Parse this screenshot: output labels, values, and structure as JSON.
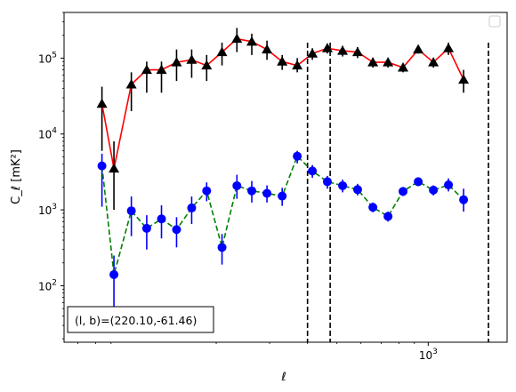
{
  "chart_data": {
    "type": "line",
    "xscale": "log",
    "yscale": "log",
    "xlabel": "ℓ",
    "ylabel": "C_ℓ [mK²]",
    "xlim": [
      63,
      1820
    ],
    "ylim": [
      18,
      400000
    ],
    "x_tick_labels": [
      {
        "value": 1000,
        "base": "10",
        "exp": "3"
      }
    ],
    "y_tick_labels": [
      {
        "value": 100,
        "base": "10",
        "exp": "2"
      },
      {
        "value": 1000,
        "base": "10",
        "exp": "3"
      },
      {
        "value": 10000,
        "base": "10",
        "exp": "4"
      },
      {
        "value": 100000,
        "base": "10",
        "exp": "5"
      }
    ],
    "annotation": "(l, b)=(220.10,-61.46)",
    "legend": {
      "placement": "upper right",
      "entries": []
    },
    "vlines": [
      {
        "x": 400,
        "color": "#000000",
        "dash": "dashed"
      },
      {
        "x": 475,
        "color": "#000000",
        "dash": "dashed"
      },
      {
        "x": 1580,
        "color": "#000000",
        "dash": "dashed"
      }
    ],
    "series": [
      {
        "line_color": "#ff0000",
        "marker_color": "#000000",
        "marker": "triangle",
        "line_style": "solid",
        "points": [
          {
            "x": 84,
            "y": 25000,
            "lo": 6000,
            "hi": 42000
          },
          {
            "x": 92,
            "y": 3500,
            "lo": 1000,
            "hi": 8000
          },
          {
            "x": 105,
            "y": 45000,
            "lo": 20000,
            "hi": 65000
          },
          {
            "x": 118,
            "y": 70000,
            "lo": 35000,
            "hi": 90000
          },
          {
            "x": 132,
            "y": 70000,
            "lo": 35000,
            "hi": 90000
          },
          {
            "x": 148,
            "y": 88000,
            "lo": 50000,
            "hi": 130000
          },
          {
            "x": 166,
            "y": 95000,
            "lo": 55000,
            "hi": 130000
          },
          {
            "x": 186,
            "y": 80000,
            "lo": 50000,
            "hi": 110000
          },
          {
            "x": 209,
            "y": 120000,
            "lo": 80000,
            "hi": 160000
          },
          {
            "x": 234,
            "y": 180000,
            "lo": 120000,
            "hi": 250000
          },
          {
            "x": 262,
            "y": 165000,
            "lo": 110000,
            "hi": 210000
          },
          {
            "x": 294,
            "y": 130000,
            "lo": 95000,
            "hi": 170000
          },
          {
            "x": 330,
            "y": 90000,
            "lo": 70000,
            "hi": 110000
          },
          {
            "x": 370,
            "y": 80000,
            "lo": 65000,
            "hi": 100000
          },
          {
            "x": 415,
            "y": 115000,
            "lo": 95000,
            "hi": 135000
          },
          {
            "x": 465,
            "y": 135000,
            "lo": 115000,
            "hi": 155000
          },
          {
            "x": 522,
            "y": 125000,
            "lo": 105000,
            "hi": 145000
          },
          {
            "x": 585,
            "y": 120000,
            "lo": 100000,
            "hi": 140000
          },
          {
            "x": 657,
            "y": 88000,
            "lo": 75000,
            "hi": 100000
          },
          {
            "x": 737,
            "y": 88000,
            "lo": 75000,
            "hi": 100000
          },
          {
            "x": 826,
            "y": 75000,
            "lo": 65000,
            "hi": 85000
          },
          {
            "x": 927,
            "y": 130000,
            "lo": 115000,
            "hi": 145000
          },
          {
            "x": 1040,
            "y": 88000,
            "lo": 75000,
            "hi": 100000
          },
          {
            "x": 1166,
            "y": 135000,
            "lo": 110000,
            "hi": 160000
          },
          {
            "x": 1308,
            "y": 52000,
            "lo": 35000,
            "hi": 70000
          }
        ]
      },
      {
        "line_color": "#008000",
        "marker_color": "#0000ff",
        "marker": "circle",
        "line_style": "dashed",
        "points": [
          {
            "x": 84,
            "y": 3800,
            "lo": 1100,
            "hi": 5500
          },
          {
            "x": 92,
            "y": 140,
            "lo": 40,
            "hi": 250
          },
          {
            "x": 105,
            "y": 970,
            "lo": 450,
            "hi": 1500
          },
          {
            "x": 118,
            "y": 570,
            "lo": 300,
            "hi": 850
          },
          {
            "x": 132,
            "y": 760,
            "lo": 420,
            "hi": 1150
          },
          {
            "x": 148,
            "y": 550,
            "lo": 320,
            "hi": 800
          },
          {
            "x": 166,
            "y": 1060,
            "lo": 650,
            "hi": 1500
          },
          {
            "x": 186,
            "y": 1780,
            "lo": 1300,
            "hi": 2300
          },
          {
            "x": 209,
            "y": 320,
            "lo": 190,
            "hi": 480
          },
          {
            "x": 234,
            "y": 2080,
            "lo": 1400,
            "hi": 2900
          },
          {
            "x": 262,
            "y": 1780,
            "lo": 1250,
            "hi": 2400
          },
          {
            "x": 294,
            "y": 1650,
            "lo": 1250,
            "hi": 2100
          },
          {
            "x": 330,
            "y": 1520,
            "lo": 1130,
            "hi": 1950
          },
          {
            "x": 370,
            "y": 5100,
            "lo": 4100,
            "hi": 6000
          },
          {
            "x": 415,
            "y": 3250,
            "lo": 2650,
            "hi": 3900
          },
          {
            "x": 465,
            "y": 2350,
            "lo": 1900,
            "hi": 2800
          },
          {
            "x": 522,
            "y": 2080,
            "lo": 1700,
            "hi": 2500
          },
          {
            "x": 585,
            "y": 1850,
            "lo": 1550,
            "hi": 2200
          },
          {
            "x": 657,
            "y": 1080,
            "lo": 930,
            "hi": 1250
          },
          {
            "x": 737,
            "y": 820,
            "lo": 700,
            "hi": 950
          },
          {
            "x": 826,
            "y": 1750,
            "lo": 1520,
            "hi": 2000
          },
          {
            "x": 927,
            "y": 2350,
            "lo": 2050,
            "hi": 2650
          },
          {
            "x": 1040,
            "y": 1820,
            "lo": 1550,
            "hi": 2100
          },
          {
            "x": 1166,
            "y": 2130,
            "lo": 1750,
            "hi": 2600
          },
          {
            "x": 1308,
            "y": 1360,
            "lo": 950,
            "hi": 1900
          }
        ]
      }
    ]
  }
}
